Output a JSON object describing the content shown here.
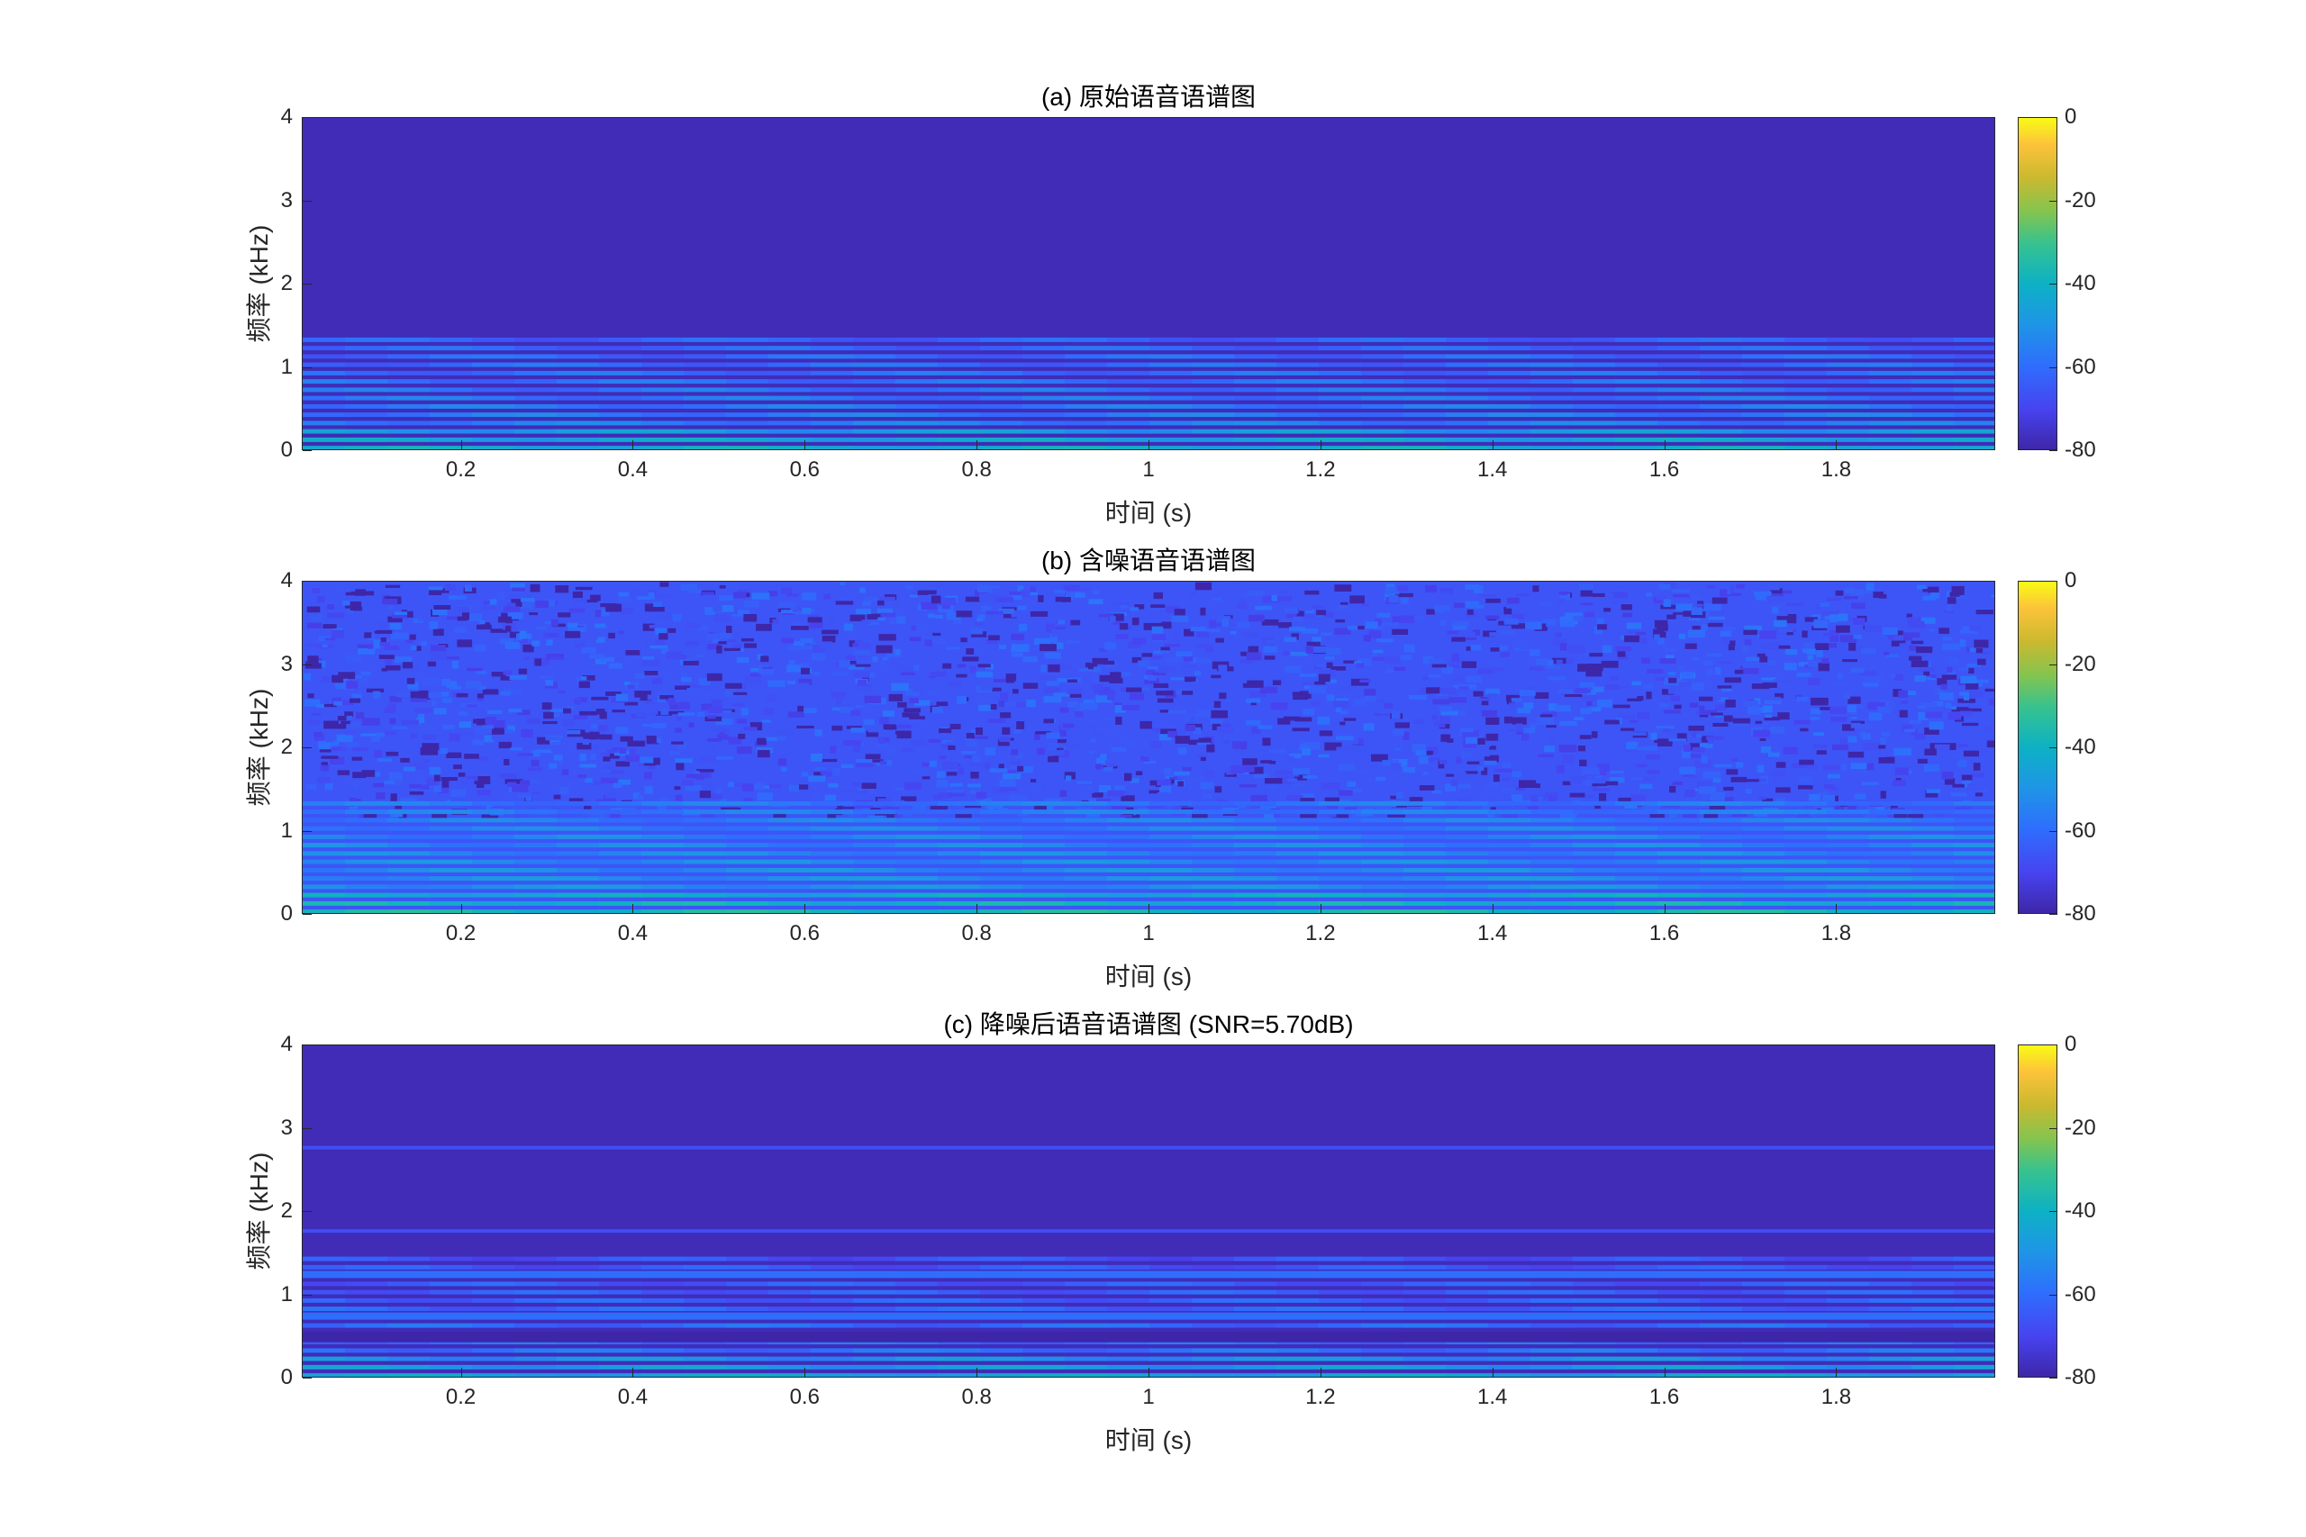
{
  "chart_data": [
    {
      "type": "heatmap",
      "title": "(a) 原始语音语谱图",
      "xlabel": "时间 (s)",
      "ylabel": "频率 (kHz)",
      "xlim": [
        0.015,
        1.985
      ],
      "ylim": [
        0,
        4
      ],
      "xticks": [
        "0.2",
        "0.4",
        "0.6",
        "0.8",
        "1",
        "1.2",
        "1.4",
        "1.6",
        "1.8"
      ],
      "yticks": [
        "0",
        "1",
        "2",
        "3",
        "4"
      ],
      "colorbar": {
        "ticks": [
          "0",
          "-20",
          "-40",
          "-60",
          "-80"
        ],
        "range_db": [
          -80,
          0
        ],
        "colormap": "parula"
      },
      "description_bands": {
        "harmonics_up_to_khz": 1.25,
        "harmonic_spacing_khz": 0.1,
        "background_db": -78,
        "harmonic_level_db": -55
      }
    },
    {
      "type": "heatmap",
      "title": "(b) 含噪语音语谱图",
      "xlabel": "时间 (s)",
      "ylabel": "频率 (kHz)",
      "xlim": [
        0.015,
        1.985
      ],
      "ylim": [
        0,
        4
      ],
      "xticks": [
        "0.2",
        "0.4",
        "0.6",
        "0.8",
        "1",
        "1.2",
        "1.4",
        "1.6",
        "1.8"
      ],
      "yticks": [
        "0",
        "1",
        "2",
        "3",
        "4"
      ],
      "colorbar": {
        "ticks": [
          "0",
          "-20",
          "-40",
          "-60",
          "-80"
        ],
        "range_db": [
          -80,
          0
        ],
        "colormap": "parula"
      },
      "description_bands": {
        "harmonics_up_to_khz": 1.25,
        "harmonic_spacing_khz": 0.1,
        "background_db": -66,
        "harmonic_level_db": -50
      }
    },
    {
      "type": "heatmap",
      "title": "(c) 降噪后语音语谱图 (SNR=5.70dB)",
      "xlabel": "时间 (s)",
      "ylabel": "频率 (kHz)",
      "xlim": [
        0.015,
        1.985
      ],
      "ylim": [
        0,
        4
      ],
      "xticks": [
        "0.2",
        "0.4",
        "0.6",
        "0.8",
        "1",
        "1.2",
        "1.4",
        "1.6",
        "1.8"
      ],
      "yticks": [
        "0",
        "1",
        "2",
        "3",
        "4"
      ],
      "colorbar": {
        "ticks": [
          "0",
          "-20",
          "-40",
          "-60",
          "-80"
        ],
        "range_db": [
          -80,
          0
        ],
        "colormap": "parula"
      },
      "description_bands": {
        "harmonics_up_to_khz": 1.4,
        "harmonic_spacing_khz": 0.1,
        "background_db": -78,
        "harmonic_level_db": -58
      }
    }
  ],
  "colors": {
    "bg_low": "#3e26a8",
    "mid_blue": "#2f6dfd",
    "cyan": "#0db1c4",
    "yellow": "#f9fb15"
  }
}
